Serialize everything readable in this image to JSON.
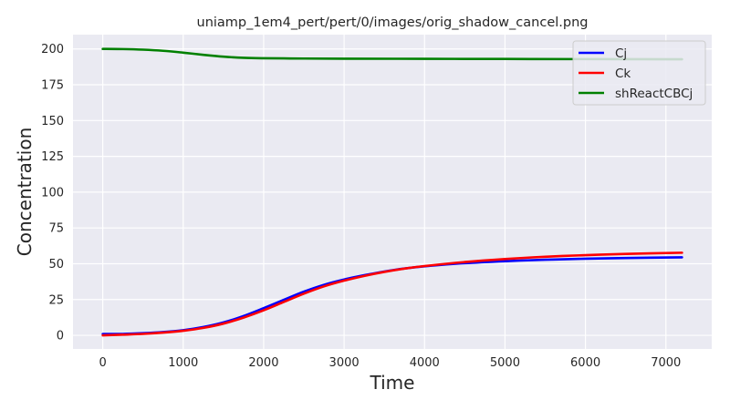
{
  "chart_data": {
    "type": "line",
    "title": "uniamp_1em4_pert/pert/0/images/orig_shadow_cancel.png",
    "xlabel": "Time",
    "ylabel": "Concentration",
    "xlim": [
      -370,
      7570
    ],
    "ylim": [
      -9.5,
      210
    ],
    "xticks": [
      0,
      1000,
      2000,
      3000,
      4000,
      5000,
      6000,
      7000
    ],
    "yticks": [
      0,
      25,
      50,
      75,
      100,
      125,
      150,
      175,
      200
    ],
    "grid": true,
    "legend_position": "top-right",
    "background": "#eaeaf2",
    "series": [
      {
        "name": "Cj",
        "color": "#0000ff",
        "x": [
          0,
          250,
          500,
          750,
          1000,
          1250,
          1500,
          1750,
          2000,
          2250,
          2500,
          2750,
          3000,
          3250,
          3500,
          3750,
          4000,
          4500,
          5000,
          5500,
          6000,
          6500,
          7200
        ],
        "y": [
          1.0,
          1.0,
          1.5,
          2.3,
          3.6,
          5.8,
          9.0,
          13.5,
          19.0,
          24.8,
          30.5,
          35.3,
          39.0,
          42.0,
          44.6,
          46.7,
          48.2,
          50.4,
          51.8,
          52.8,
          53.5,
          54.0,
          54.5
        ]
      },
      {
        "name": "Ck",
        "color": "#ff0000",
        "x": [
          0,
          250,
          500,
          750,
          1000,
          1250,
          1500,
          1750,
          2000,
          2250,
          2500,
          2750,
          3000,
          3250,
          3500,
          3750,
          4000,
          4500,
          5000,
          5500,
          6000,
          6500,
          7200
        ],
        "y": [
          0.0,
          0.5,
          1.0,
          1.9,
          3.2,
          5.2,
          8.2,
          12.4,
          17.5,
          23.3,
          29.1,
          34.2,
          38.2,
          41.5,
          44.3,
          46.6,
          48.4,
          51.2,
          53.3,
          54.9,
          56.0,
          56.9,
          57.7
        ]
      },
      {
        "name": "shReactCBCj",
        "color": "#008000",
        "x": [
          0,
          250,
          500,
          750,
          1000,
          1250,
          1500,
          1750,
          2000,
          2250,
          2500,
          3000,
          4000,
          5000,
          6000,
          7200
        ],
        "y": [
          200.0,
          199.9,
          199.5,
          198.7,
          197.4,
          195.9,
          194.6,
          193.8,
          193.5,
          193.4,
          193.3,
          193.2,
          193.1,
          193.0,
          192.9,
          192.8
        ]
      }
    ]
  }
}
